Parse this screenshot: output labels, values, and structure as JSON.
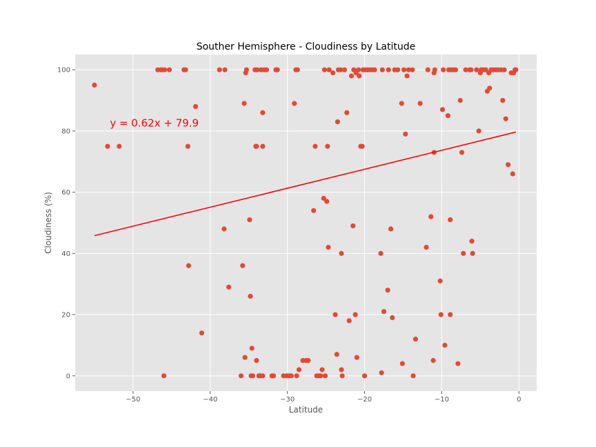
{
  "chart_data": {
    "type": "scatter",
    "title": "Souther Hemisphere - Cloudiness by Latitude",
    "xlabel": "Latitude",
    "ylabel": "Cloudiness (%)",
    "xlim": [
      -57.5,
      2.3
    ],
    "ylim": [
      -5,
      105
    ],
    "x_ticks": [
      -50,
      -40,
      -30,
      -20,
      -10,
      0
    ],
    "x_tick_labels": [
      "−50",
      "−40",
      "−30",
      "−20",
      "−10",
      "0"
    ],
    "y_ticks": [
      0,
      20,
      40,
      60,
      80,
      100
    ],
    "y_tick_labels": [
      "0",
      "20",
      "40",
      "60",
      "80",
      "100"
    ],
    "grid": true,
    "background": "#e5e5e5",
    "point_color": "#e24a33",
    "line_color": "#ff0000",
    "annotation": {
      "text": "y = 0.62x + 79.9",
      "x": -53.0,
      "y": 81.5,
      "color": "#ff0000"
    },
    "regression": {
      "slope": 0.62,
      "intercept": 79.9,
      "x_range": [
        -55.0,
        -0.4
      ]
    },
    "points": [
      [
        -55.0,
        95
      ],
      [
        -53.3,
        75
      ],
      [
        -51.8,
        75
      ],
      [
        -46.8,
        100
      ],
      [
        -46.4,
        100
      ],
      [
        -46.2,
        100
      ],
      [
        -45.9,
        100
      ],
      [
        -45.3,
        100
      ],
      [
        -46.0,
        0
      ],
      [
        -43.4,
        100
      ],
      [
        -43.2,
        100
      ],
      [
        -42.9,
        75
      ],
      [
        -42.8,
        36
      ],
      [
        -41.9,
        88
      ],
      [
        -41.1,
        14
      ],
      [
        -38.8,
        100
      ],
      [
        -38.1,
        100
      ],
      [
        -38.2,
        48
      ],
      [
        -37.6,
        29
      ],
      [
        -36.0,
        0
      ],
      [
        -35.8,
        36
      ],
      [
        -35.6,
        89
      ],
      [
        -35.5,
        6
      ],
      [
        -35.4,
        99
      ],
      [
        -35.3,
        100
      ],
      [
        -34.9,
        51
      ],
      [
        -34.8,
        26
      ],
      [
        -34.7,
        0
      ],
      [
        -34.6,
        9
      ],
      [
        -34.5,
        0
      ],
      [
        -34.2,
        100
      ],
      [
        -34.1,
        75
      ],
      [
        -34.0,
        5
      ],
      [
        -34.0,
        75
      ],
      [
        -33.9,
        100
      ],
      [
        -33.7,
        0
      ],
      [
        -33.5,
        0
      ],
      [
        -33.4,
        100
      ],
      [
        -33.2,
        0
      ],
      [
        -33.2,
        86
      ],
      [
        -33.2,
        75
      ],
      [
        -33.0,
        100
      ],
      [
        -32.7,
        100
      ],
      [
        -32.0,
        0
      ],
      [
        -31.8,
        0
      ],
      [
        -31.5,
        100
      ],
      [
        -31.3,
        100
      ],
      [
        -30.5,
        0
      ],
      [
        -30.1,
        0
      ],
      [
        -29.8,
        0
      ],
      [
        -29.5,
        0
      ],
      [
        -29.1,
        89
      ],
      [
        -28.9,
        100
      ],
      [
        -28.7,
        100
      ],
      [
        -28.8,
        0
      ],
      [
        -28.5,
        2
      ],
      [
        -28.0,
        5
      ],
      [
        -27.6,
        5
      ],
      [
        -27.3,
        5
      ],
      [
        -26.6,
        54
      ],
      [
        -26.4,
        75
      ],
      [
        -26.2,
        0
      ],
      [
        -25.9,
        0
      ],
      [
        -25.7,
        0
      ],
      [
        -25.5,
        2
      ],
      [
        -25.3,
        58
      ],
      [
        -25.2,
        100
      ],
      [
        -25.1,
        0
      ],
      [
        -24.9,
        57
      ],
      [
        -24.8,
        75
      ],
      [
        -24.7,
        42
      ],
      [
        -24.6,
        100
      ],
      [
        -24.1,
        99
      ],
      [
        -23.8,
        20
      ],
      [
        -23.6,
        7
      ],
      [
        -23.5,
        83
      ],
      [
        -23.4,
        100
      ],
      [
        -23.1,
        100
      ],
      [
        -23.0,
        2
      ],
      [
        -22.9,
        0
      ],
      [
        -23.0,
        40
      ],
      [
        -22.6,
        100
      ],
      [
        -22.3,
        86
      ],
      [
        -22.0,
        18
      ],
      [
        -21.7,
        98
      ],
      [
        -21.5,
        49
      ],
      [
        -21.4,
        100
      ],
      [
        -21.2,
        20
      ],
      [
        -21.1,
        99
      ],
      [
        -21.0,
        6
      ],
      [
        -20.8,
        100
      ],
      [
        -20.7,
        98
      ],
      [
        -20.5,
        75
      ],
      [
        -20.3,
        75
      ],
      [
        -20.2,
        100
      ],
      [
        -20.0,
        0
      ],
      [
        -19.9,
        100
      ],
      [
        -19.6,
        100
      ],
      [
        -19.3,
        100
      ],
      [
        -19.0,
        100
      ],
      [
        -18.7,
        100
      ],
      [
        -17.9,
        40
      ],
      [
        -17.8,
        1
      ],
      [
        -17.7,
        100
      ],
      [
        -17.5,
        21
      ],
      [
        -17.0,
        28
      ],
      [
        -16.9,
        100
      ],
      [
        -16.6,
        48
      ],
      [
        -16.4,
        19
      ],
      [
        -16.1,
        100
      ],
      [
        -15.7,
        100
      ],
      [
        -15.2,
        89
      ],
      [
        -15.1,
        4
      ],
      [
        -14.9,
        100
      ],
      [
        -14.7,
        79
      ],
      [
        -14.5,
        98
      ],
      [
        -14.3,
        100
      ],
      [
        -13.8,
        100
      ],
      [
        -13.7,
        0
      ],
      [
        -13.4,
        12
      ],
      [
        -12.8,
        89
      ],
      [
        -12.0,
        42
      ],
      [
        -11.8,
        100
      ],
      [
        -11.4,
        52
      ],
      [
        -11.1,
        5
      ],
      [
        -11.0,
        73
      ],
      [
        -11.0,
        99
      ],
      [
        -10.9,
        100
      ],
      [
        -10.2,
        31
      ],
      [
        -10.1,
        20
      ],
      [
        -9.9,
        87
      ],
      [
        -9.8,
        100
      ],
      [
        -9.6,
        10
      ],
      [
        -9.2,
        85
      ],
      [
        -9.1,
        100
      ],
      [
        -8.9,
        20
      ],
      [
        -8.9,
        51
      ],
      [
        -8.8,
        100
      ],
      [
        -8.5,
        100
      ],
      [
        -8.2,
        100
      ],
      [
        -7.9,
        4
      ],
      [
        -7.6,
        90
      ],
      [
        -7.4,
        73
      ],
      [
        -7.2,
        40
      ],
      [
        -6.9,
        100
      ],
      [
        -6.4,
        100
      ],
      [
        -6.2,
        100
      ],
      [
        -6.1,
        44
      ],
      [
        -6.0,
        40
      ],
      [
        -5.5,
        100
      ],
      [
        -5.2,
        80
      ],
      [
        -5.0,
        99
      ],
      [
        -4.9,
        100
      ],
      [
        -4.6,
        100
      ],
      [
        -4.3,
        100
      ],
      [
        -4.1,
        93
      ],
      [
        -3.9,
        99
      ],
      [
        -3.8,
        94
      ],
      [
        -3.6,
        100
      ],
      [
        -3.3,
        100
      ],
      [
        -3.0,
        100
      ],
      [
        -2.7,
        100
      ],
      [
        -2.3,
        100
      ],
      [
        -2.1,
        90
      ],
      [
        -1.9,
        100
      ],
      [
        -1.7,
        84
      ],
      [
        -1.4,
        69
      ],
      [
        -1.0,
        99
      ],
      [
        -0.8,
        66
      ],
      [
        -0.7,
        99
      ],
      [
        -0.5,
        100
      ],
      [
        -0.4,
        100
      ]
    ]
  }
}
